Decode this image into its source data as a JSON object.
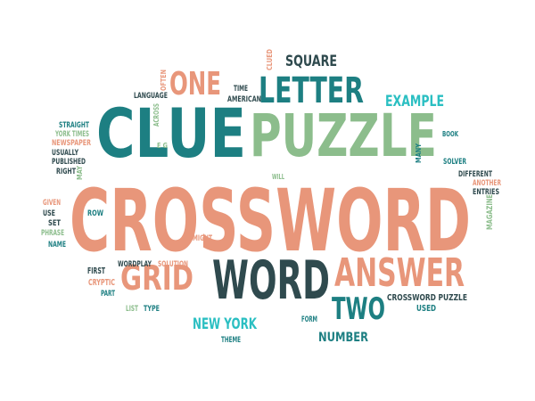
{
  "palette": {
    "salmon": "#e8967a",
    "dark_teal": "#1d7f82",
    "dark_slate": "#2f4a4e",
    "green": "#8cbd8c",
    "cyan": "#2bbfc2"
  },
  "words": [
    {
      "text": "CROSSWORD",
      "color": "salmon"
    },
    {
      "text": "CLUE",
      "color": "dark_teal"
    },
    {
      "text": "PUZZLE",
      "color": "green"
    },
    {
      "text": "WORD",
      "color": "dark_slate"
    },
    {
      "text": "ANSWER",
      "color": "salmon"
    },
    {
      "text": "LETTER",
      "color": "dark_teal"
    },
    {
      "text": "GRID",
      "color": "salmon"
    },
    {
      "text": "ONE",
      "color": "salmon"
    },
    {
      "text": "TWO",
      "color": "dark_teal"
    },
    {
      "text": "SQUARE",
      "color": "dark_slate"
    },
    {
      "text": "EXAMPLE",
      "color": "cyan"
    },
    {
      "text": "NEW YORK",
      "color": "cyan"
    },
    {
      "text": "NUMBER",
      "color": "dark_teal"
    },
    {
      "text": "CROSSWORD PUZZLE",
      "color": "dark_slate"
    },
    {
      "text": "USED",
      "color": "dark_teal"
    },
    {
      "text": "THEME",
      "color": "dark_teal"
    },
    {
      "text": "FORM",
      "color": "dark_teal"
    },
    {
      "text": "LIST",
      "color": "green"
    },
    {
      "text": "TYPE",
      "color": "dark_teal"
    },
    {
      "text": "FIRST",
      "color": "dark_slate"
    },
    {
      "text": "CRYPTIC",
      "color": "salmon"
    },
    {
      "text": "PART",
      "color": "dark_teal"
    },
    {
      "text": "WORDPLAY",
      "color": "dark_slate"
    },
    {
      "text": "SOLUTION",
      "color": "salmon"
    },
    {
      "text": "MIGHT",
      "color": "salmon"
    },
    {
      "text": "ROW",
      "color": "dark_teal"
    },
    {
      "text": "GIVEN",
      "color": "salmon"
    },
    {
      "text": "USE",
      "color": "dark_slate"
    },
    {
      "text": "SET",
      "color": "dark_slate"
    },
    {
      "text": "PHRASE",
      "color": "green"
    },
    {
      "text": "NAME",
      "color": "dark_teal"
    },
    {
      "text": "STRAIGHT",
      "color": "dark_teal"
    },
    {
      "text": "YORK TIMES",
      "color": "green"
    },
    {
      "text": "NEWSPAPER",
      "color": "salmon"
    },
    {
      "text": "USUALLY",
      "color": "dark_slate"
    },
    {
      "text": "PUBLISHED",
      "color": "dark_slate"
    },
    {
      "text": "RIGHT",
      "color": "dark_slate"
    },
    {
      "text": "MAY",
      "color": "green"
    },
    {
      "text": "ACROSS",
      "color": "green"
    },
    {
      "text": "LANGUAGE",
      "color": "dark_slate"
    },
    {
      "text": "OFTEN",
      "color": "salmon"
    },
    {
      "text": "E G",
      "color": "green"
    },
    {
      "text": "TIME",
      "color": "dark_slate"
    },
    {
      "text": "AMERICAN",
      "color": "dark_slate"
    },
    {
      "text": "CLUED",
      "color": "salmon"
    },
    {
      "text": "WILL",
      "color": "green"
    },
    {
      "text": "MANY",
      "color": "dark_teal"
    },
    {
      "text": "BOOK",
      "color": "dark_teal"
    },
    {
      "text": "SOLVER",
      "color": "dark_teal"
    },
    {
      "text": "DIFFERENT",
      "color": "dark_slate"
    },
    {
      "text": "ANOTHER",
      "color": "salmon"
    },
    {
      "text": "ENTRIES",
      "color": "dark_slate"
    },
    {
      "text": "MAGAZINE",
      "color": "green"
    }
  ]
}
